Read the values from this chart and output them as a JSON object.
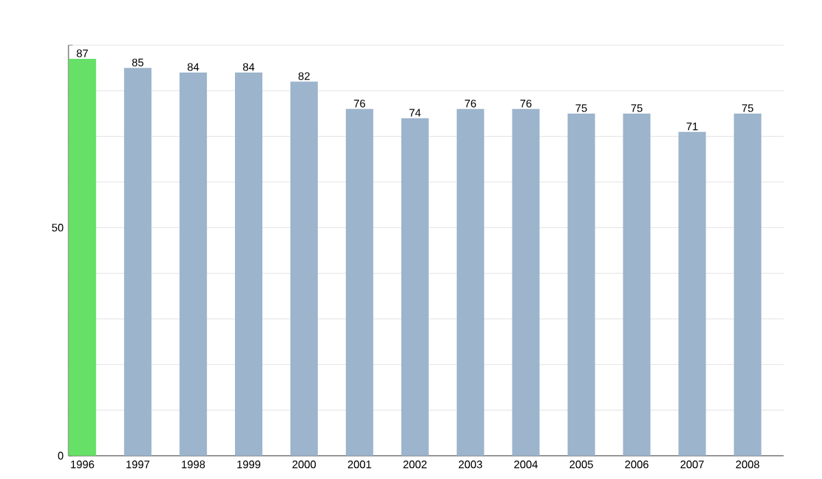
{
  "chart_data": {
    "type": "bar",
    "categories": [
      "1996",
      "1997",
      "1998",
      "1999",
      "2000",
      "2001",
      "2002",
      "2003",
      "2004",
      "2005",
      "2006",
      "2007",
      "2008"
    ],
    "values": [
      87,
      85,
      84,
      84,
      82,
      76,
      74,
      76,
      76,
      75,
      75,
      71,
      75
    ],
    "colors": [
      "#66e066",
      "#9cb4cc",
      "#9cb4cc",
      "#9cb4cc",
      "#9cb4cc",
      "#9cb4cc",
      "#9cb4cc",
      "#9cb4cc",
      "#9cb4cc",
      "#9cb4cc",
      "#9cb4cc",
      "#9cb4cc",
      "#9cb4cc"
    ],
    "ylim": [
      0,
      90
    ],
    "yticks": [
      0,
      {
        "value": 10,
        "label": null
      },
      {
        "value": 20,
        "label": null
      },
      {
        "value": 30,
        "label": null
      },
      {
        "value": 40,
        "label": null
      },
      50,
      {
        "value": 60,
        "label": null
      },
      {
        "value": 70,
        "label": null
      },
      {
        "value": 80,
        "label": null
      },
      {
        "value": 90,
        "label": null
      }
    ],
    "grid": "y",
    "data_labels": true
  }
}
